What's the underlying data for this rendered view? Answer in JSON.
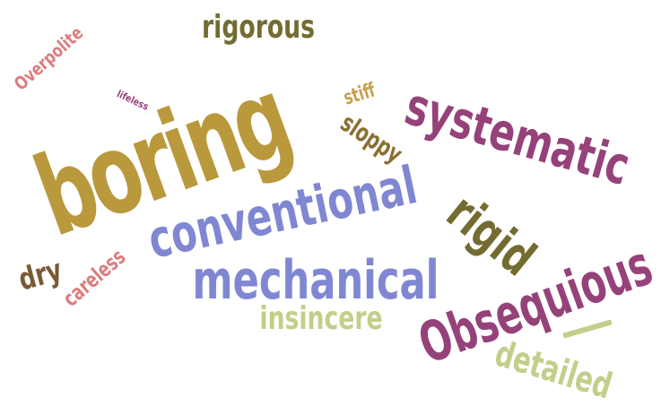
{
  "words": {
    "boring": {
      "text": "boring",
      "color": "#b9993c"
    },
    "conventional": {
      "text": "conventional",
      "color": "#8087d2"
    },
    "mechanical": {
      "text": "mechanical",
      "color": "#8087d2"
    },
    "systematic": {
      "text": "systematic",
      "color": "#96427a"
    },
    "obsequious": {
      "text": "Obsequious",
      "color": "#96427a"
    },
    "rigid": {
      "text": "rigid",
      "color": "#736b30"
    },
    "rigorous": {
      "text": "rigorous",
      "color": "#736b30"
    },
    "insincere": {
      "text": "insincere",
      "color": "#c5cd8a"
    },
    "detailed": {
      "text": "detailed",
      "color": "#c5cd8a"
    },
    "sloppy": {
      "text": "sloppy",
      "color": "#8a6f31"
    },
    "stiff": {
      "text": "stiff",
      "color": "#c9a04d"
    },
    "overpolite": {
      "text": "Overpolite",
      "color": "#dc7d7d"
    },
    "lifeless": {
      "text": "lifeless",
      "color": "#96427a"
    },
    "dry": {
      "text": "dry",
      "color": "#7a5a34"
    },
    "careless": {
      "text": "careless",
      "color": "#dc7d7d"
    }
  }
}
